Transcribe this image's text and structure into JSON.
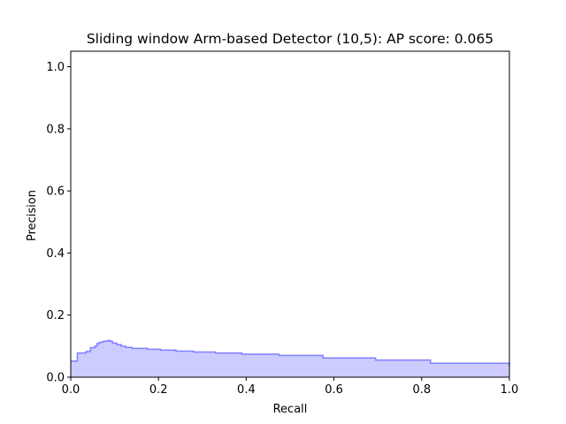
{
  "chart_data": {
    "type": "area",
    "title": "Sliding window Arm-based Detector (10,5): AP score: 0.065",
    "xlabel": "Recall",
    "ylabel": "Precision",
    "xlim": [
      0.0,
      1.0
    ],
    "ylim": [
      0.0,
      1.05
    ],
    "xticks": [
      "0.0",
      "0.2",
      "0.4",
      "0.6",
      "0.8",
      "1.0"
    ],
    "yticks": [
      "0.0",
      "0.2",
      "0.4",
      "0.6",
      "0.8",
      "1.0"
    ],
    "step": "post",
    "grid": false,
    "legend": "none",
    "fill_color": "#ccccff",
    "line_color": "#8080ff",
    "series": [
      {
        "x": [
          0.0,
          0.015,
          0.035,
          0.045,
          0.055,
          0.06,
          0.065,
          0.07,
          0.075,
          0.085,
          0.09,
          0.095,
          0.105,
          0.115,
          0.125,
          0.14,
          0.175,
          0.205,
          0.24,
          0.28,
          0.33,
          0.39,
          0.475,
          0.575,
          0.695,
          0.82,
          1.0
        ],
        "y": [
          0.052,
          0.078,
          0.083,
          0.095,
          0.1,
          0.108,
          0.112,
          0.114,
          0.116,
          0.118,
          0.116,
          0.11,
          0.105,
          0.1,
          0.096,
          0.093,
          0.09,
          0.087,
          0.084,
          0.081,
          0.078,
          0.074,
          0.07,
          0.062,
          0.055,
          0.045,
          0.034
        ]
      }
    ]
  }
}
